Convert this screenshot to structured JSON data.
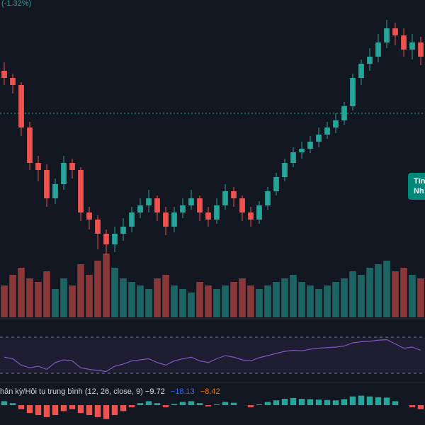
{
  "chart_data": {
    "type": "candlestick",
    "change_label": "(-1.32%)",
    "badge_lines": [
      "Tín",
      "Nh"
    ],
    "macd_title": "hân kỳ/Hội tụ trung bình (12, 26, close, 9)",
    "macd_readouts": [
      {
        "text": "−9.72",
        "color": "#e0e3eb"
      },
      {
        "text": "−18.13",
        "color": "#2962ff"
      },
      {
        "text": "−8.42",
        "color": "#ff6d00"
      }
    ],
    "ylim": [
      0,
      100
    ],
    "up_color": "#26a69a",
    "down_color": "#ef5350",
    "open": [
      75,
      72.5,
      70,
      55,
      42.5,
      40,
      30,
      35,
      42.5,
      40,
      25,
      22.5,
      17.5,
      13.75,
      17.5,
      20,
      25,
      27.5,
      30,
      25,
      20,
      25,
      27.5,
      30,
      25,
      22.5,
      27.5,
      32.5,
      30,
      25,
      22.5,
      27.5,
      32.5,
      37.5,
      42.5,
      46.25,
      47.5,
      50,
      52.5,
      55,
      57.5,
      62.5,
      72.5,
      77.5,
      80,
      85,
      90,
      87.5,
      82.5,
      85
    ],
    "high": [
      78,
      74,
      71,
      57,
      45,
      42,
      37,
      45,
      44,
      41,
      27,
      24,
      19,
      20,
      23,
      27,
      30,
      33,
      31,
      27,
      27,
      30,
      33,
      31,
      27,
      30,
      35,
      34,
      31,
      27,
      29,
      34,
      39,
      44,
      48,
      50,
      52,
      55,
      57,
      60,
      64,
      74,
      79,
      83,
      88,
      93,
      92,
      90,
      88,
      87
    ],
    "low": [
      70,
      67,
      52,
      40,
      36,
      27,
      28,
      33,
      37,
      22,
      19,
      12,
      10,
      11,
      15,
      18,
      23,
      25,
      22,
      17,
      18,
      23,
      26,
      22,
      20,
      21,
      26,
      27,
      22,
      20,
      21,
      26,
      31,
      36,
      41,
      44,
      46,
      48,
      51,
      53,
      56,
      61,
      70,
      75,
      78,
      83,
      84,
      80,
      79,
      77
    ],
    "close": [
      72.5,
      70,
      55,
      42.5,
      40,
      30,
      35,
      42.5,
      40,
      25,
      22.5,
      17.5,
      13.75,
      17.5,
      20,
      25,
      27.5,
      30,
      25,
      20,
      25,
      27.5,
      30,
      25,
      22.5,
      27.5,
      32.5,
      30,
      25,
      22.5,
      27.5,
      32.5,
      37.5,
      42.5,
      46.25,
      47.5,
      50,
      52.5,
      55,
      57.5,
      62.5,
      72.5,
      77.5,
      80,
      85,
      90,
      87.5,
      82.5,
      85,
      80
    ],
    "volume": [
      45,
      60,
      70,
      55,
      50,
      65,
      40,
      55,
      45,
      75,
      60,
      80,
      90,
      70,
      55,
      50,
      45,
      40,
      55,
      60,
      45,
      40,
      35,
      50,
      45,
      40,
      45,
      50,
      55,
      45,
      40,
      45,
      50,
      55,
      60,
      50,
      45,
      40,
      45,
      50,
      55,
      65,
      60,
      70,
      75,
      80,
      65,
      70,
      60,
      55
    ],
    "vlim": [
      0,
      100
    ],
    "rsi": [
      45,
      42,
      30,
      25,
      28,
      22,
      35,
      40,
      38,
      25,
      22,
      20,
      18,
      28,
      32,
      38,
      40,
      42,
      35,
      30,
      38,
      42,
      45,
      38,
      35,
      42,
      48,
      45,
      40,
      38,
      44,
      48,
      52,
      56,
      58,
      57,
      60,
      62,
      63,
      64,
      66,
      72,
      74,
      75,
      77,
      78,
      70,
      62,
      64,
      58
    ],
    "rsi_lim": [
      0,
      100
    ],
    "macd_hist": [
      1,
      0.5,
      -1,
      -2,
      -2.5,
      -3,
      -2.5,
      -1.5,
      -1,
      -2,
      -2.5,
      -3,
      -3.5,
      -2.5,
      -1.5,
      -0.5,
      0.5,
      1,
      0.5,
      -0.5,
      0.3,
      0.8,
      1,
      0.5,
      -0.3,
      0.2,
      0.8,
      0.6,
      0,
      -0.5,
      0.2,
      0.8,
      1.2,
      1.6,
      1.8,
      1.6,
      1.5,
      1.4,
      1.3,
      1.2,
      1.5,
      2.2,
      2.4,
      2.2,
      2,
      1.9,
      1,
      0,
      -0.5,
      -1
    ],
    "macd_lim": [
      -5,
      5
    ]
  }
}
